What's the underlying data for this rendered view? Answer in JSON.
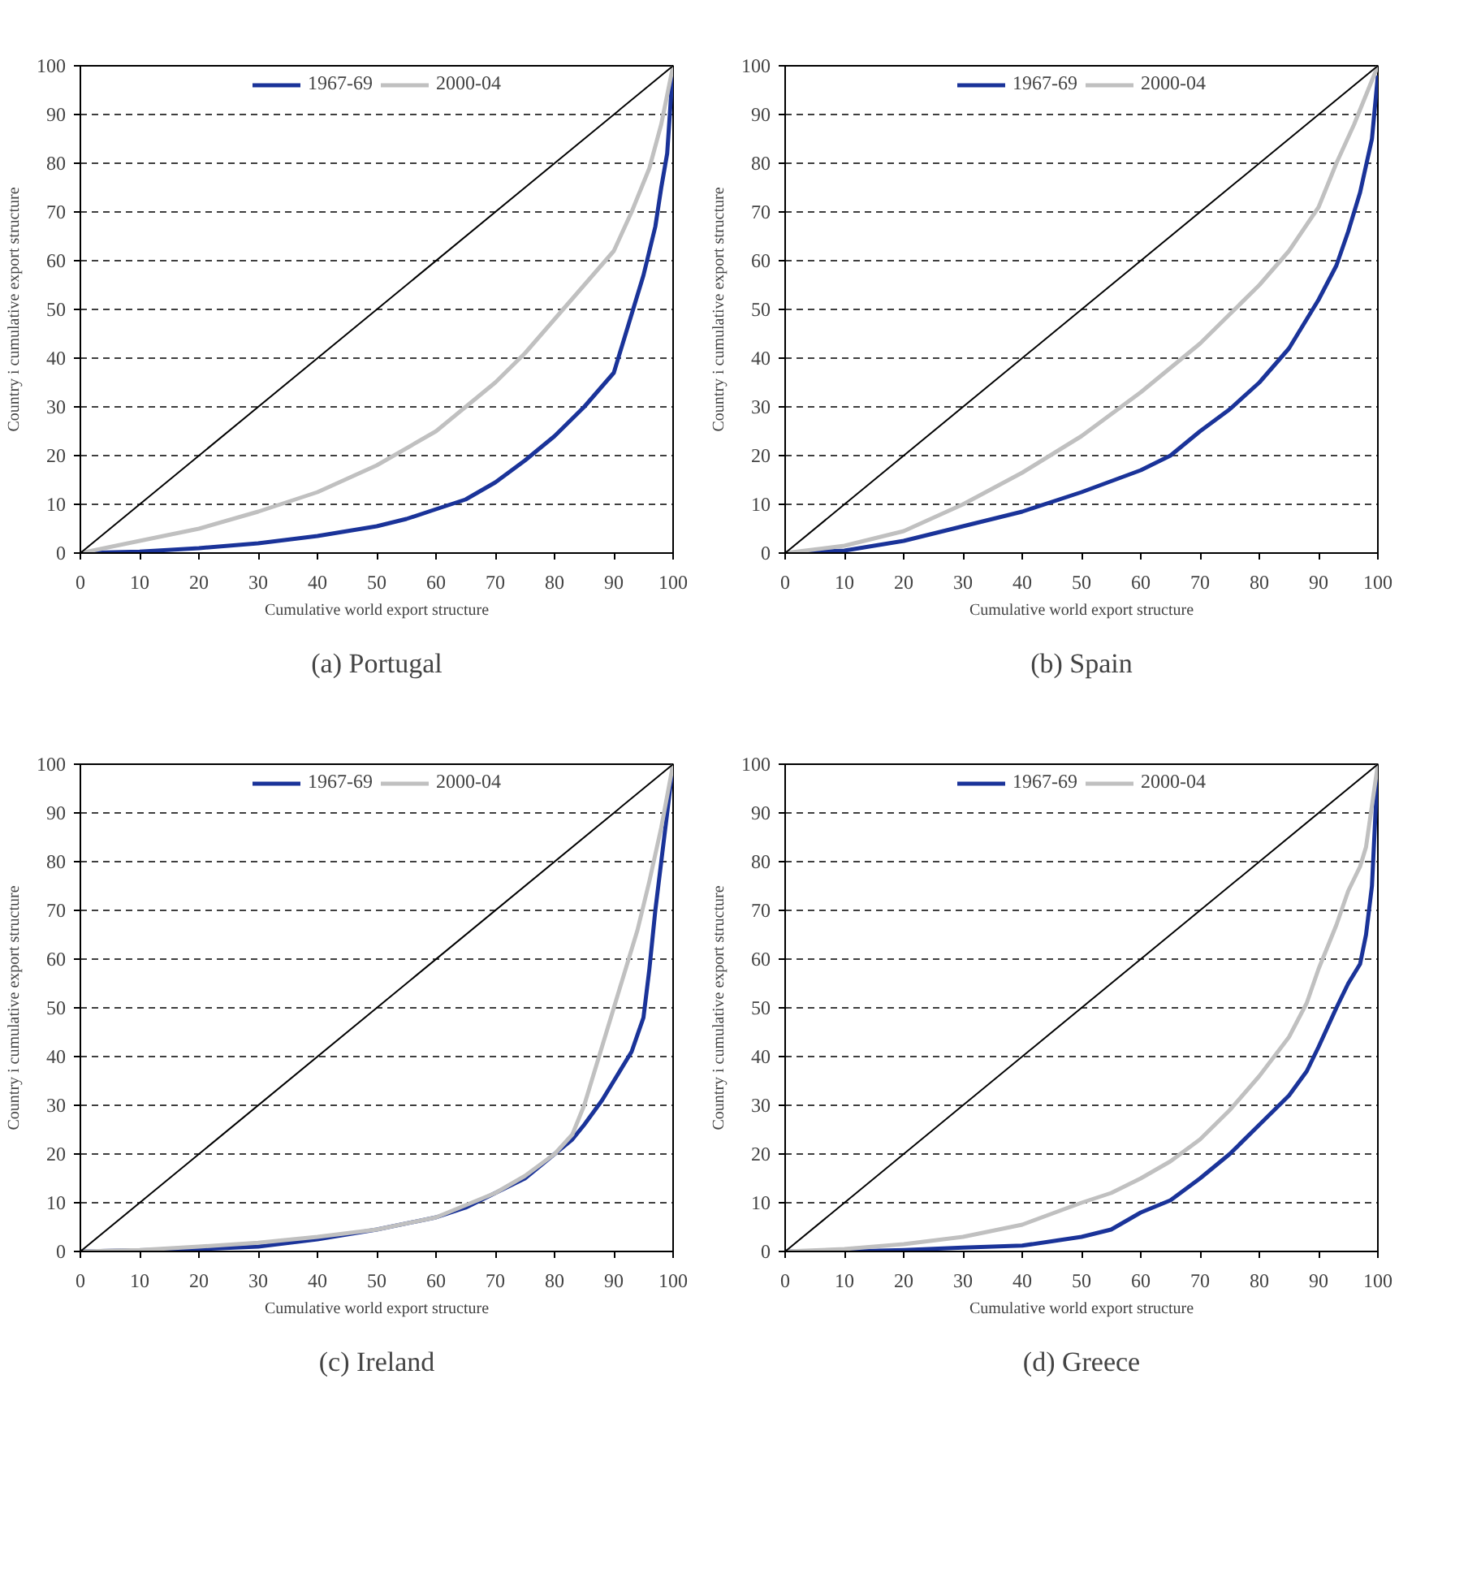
{
  "chart_data": [
    {
      "type": "line",
      "title": "(a) Portugal",
      "xlabel": "Cumulative world export structure",
      "ylabel": "Country i cumulative export structure",
      "xlim": [
        0,
        100
      ],
      "ylim": [
        0,
        100
      ],
      "xticks": [
        0,
        10,
        20,
        30,
        40,
        50,
        60,
        70,
        80,
        90,
        100
      ],
      "yticks": [
        0,
        10,
        20,
        30,
        40,
        50,
        60,
        70,
        80,
        90,
        100
      ],
      "grid": "y",
      "legend": "top",
      "series": [
        {
          "name": "1967-69",
          "color": "#1a3399",
          "x": [
            0,
            10,
            20,
            30,
            40,
            50,
            55,
            60,
            65,
            70,
            75,
            80,
            85,
            90,
            92,
            95,
            97,
            98,
            99,
            100
          ],
          "values": [
            0,
            0.3,
            1,
            2,
            3.5,
            5.5,
            7,
            9,
            11,
            14.5,
            19,
            24,
            30,
            37,
            45,
            57,
            67,
            75,
            82,
            100
          ]
        },
        {
          "name": "2000-04",
          "color": "#c0c0c0",
          "x": [
            0,
            10,
            20,
            30,
            40,
            50,
            60,
            65,
            70,
            75,
            80,
            85,
            90,
            93,
            96,
            98,
            100
          ],
          "values": [
            0,
            2.5,
            5,
            8.5,
            12.5,
            18,
            25,
            30,
            35,
            41,
            48,
            55,
            62,
            70,
            79,
            88,
            100
          ]
        },
        {
          "color": "#000000",
          "x": [
            0,
            100
          ],
          "values": [
            0,
            100
          ]
        }
      ]
    },
    {
      "type": "line",
      "title": "(b) Spain",
      "xlabel": "Cumulative world export structure",
      "ylabel": "Country i cumulative export structure",
      "xlim": [
        0,
        100
      ],
      "ylim": [
        0,
        100
      ],
      "xticks": [
        0,
        10,
        20,
        30,
        40,
        50,
        60,
        70,
        80,
        90,
        100
      ],
      "yticks": [
        0,
        10,
        20,
        30,
        40,
        50,
        60,
        70,
        80,
        90,
        100
      ],
      "grid": "y",
      "legend": "top",
      "series": [
        {
          "name": "1967-69",
          "color": "#1a3399",
          "x": [
            0,
            10,
            15,
            20,
            30,
            40,
            50,
            60,
            65,
            70,
            75,
            80,
            85,
            88,
            90,
            93,
            95,
            97,
            99,
            100
          ],
          "values": [
            0,
            0.5,
            1.5,
            2.5,
            5.5,
            8.5,
            12.5,
            17,
            20,
            25,
            29.5,
            35,
            42,
            48,
            52,
            59,
            66,
            74,
            85,
            98
          ]
        },
        {
          "name": "2000-04",
          "color": "#c0c0c0",
          "x": [
            0,
            10,
            20,
            30,
            40,
            50,
            60,
            70,
            75,
            80,
            85,
            90,
            93,
            96,
            100
          ],
          "values": [
            0,
            1.5,
            4.5,
            10,
            16.5,
            24,
            33,
            43,
            49,
            55,
            62,
            71,
            80,
            88,
            100
          ]
        },
        {
          "color": "#000000",
          "x": [
            0,
            100
          ],
          "values": [
            0,
            100
          ]
        }
      ]
    },
    {
      "type": "line",
      "title": "(c) Ireland",
      "xlabel": "Cumulative world export structure",
      "ylabel": "Country i cumulative export structure",
      "xlim": [
        0,
        100
      ],
      "ylim": [
        0,
        100
      ],
      "xticks": [
        0,
        10,
        20,
        30,
        40,
        50,
        60,
        70,
        80,
        90,
        100
      ],
      "yticks": [
        0,
        10,
        20,
        30,
        40,
        50,
        60,
        70,
        80,
        90,
        100
      ],
      "grid": "y",
      "legend": "top",
      "series": [
        {
          "name": "1967-69",
          "color": "#1a3399",
          "x": [
            0,
            20,
            30,
            40,
            50,
            60,
            65,
            70,
            75,
            80,
            83,
            85,
            88,
            90,
            93,
            95,
            96,
            97,
            98,
            100
          ],
          "values": [
            0,
            0.5,
            1,
            2.5,
            4.5,
            7,
            9,
            12,
            15,
            20,
            23,
            26,
            31,
            35,
            41,
            48,
            58,
            70,
            80,
            100
          ]
        },
        {
          "name": "2000-04",
          "color": "#c0c0c0",
          "x": [
            0,
            10,
            20,
            30,
            40,
            50,
            60,
            70,
            75,
            80,
            83,
            85,
            88,
            90,
            92,
            94,
            96,
            98,
            100
          ],
          "values": [
            0,
            0.3,
            1,
            1.8,
            3,
            4.5,
            7,
            12,
            15.5,
            20,
            24,
            30,
            42,
            50,
            58,
            66,
            76,
            87,
            100
          ]
        },
        {
          "color": "#000000",
          "x": [
            0,
            100
          ],
          "values": [
            0,
            100
          ]
        }
      ]
    },
    {
      "type": "line",
      "title": "(d) Greece",
      "xlabel": "Cumulative world export structure",
      "ylabel": "Country i cumulative export structure",
      "xlim": [
        0,
        100
      ],
      "ylim": [
        0,
        100
      ],
      "xticks": [
        0,
        10,
        20,
        30,
        40,
        50,
        60,
        70,
        80,
        90,
        100
      ],
      "yticks": [
        0,
        10,
        20,
        30,
        40,
        50,
        60,
        70,
        80,
        90,
        100
      ],
      "grid": "y",
      "legend": "top",
      "series": [
        {
          "name": "1967-69",
          "color": "#1a3399",
          "x": [
            0,
            10,
            20,
            30,
            40,
            50,
            55,
            60,
            65,
            70,
            75,
            80,
            85,
            88,
            90,
            93,
            95,
            97,
            98,
            99,
            100
          ],
          "values": [
            0,
            0,
            0.3,
            0.8,
            1.2,
            3,
            4.5,
            8,
            10.5,
            15,
            20,
            26,
            32,
            37,
            42,
            50,
            55,
            59,
            65,
            75,
            100
          ]
        },
        {
          "name": "2000-04",
          "color": "#c0c0c0",
          "x": [
            0,
            10,
            20,
            30,
            40,
            50,
            55,
            60,
            65,
            70,
            75,
            80,
            85,
            88,
            90,
            93,
            95,
            97,
            98,
            100
          ],
          "values": [
            0,
            0.5,
            1.5,
            3,
            5.5,
            10,
            12,
            15,
            18.5,
            23,
            29,
            36,
            44,
            51,
            58,
            67,
            74,
            79,
            83,
            100
          ]
        },
        {
          "color": "#000000",
          "x": [
            0,
            100
          ],
          "values": [
            0,
            100
          ]
        }
      ]
    }
  ]
}
